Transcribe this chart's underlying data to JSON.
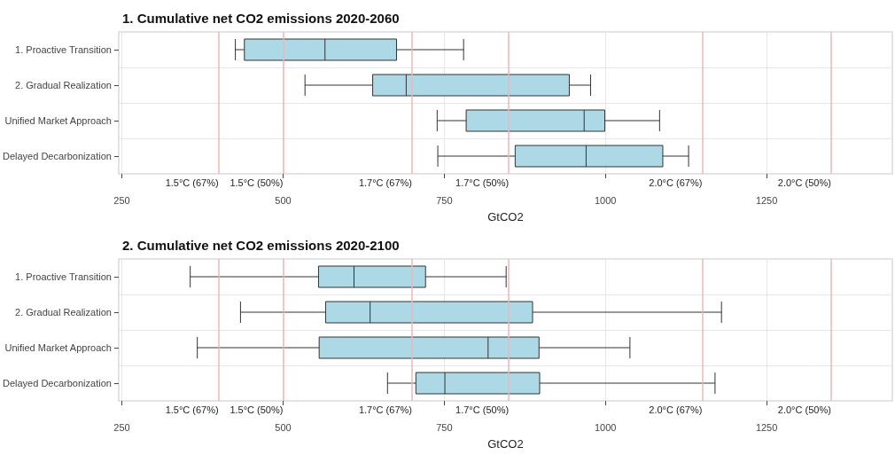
{
  "chart_data": [
    {
      "type": "box",
      "title": "1. Cumulative net CO2 emissions 2020-2060",
      "xlabel": "GtCO2",
      "orientation": "horizontal",
      "categories": [
        "1. Proactive Transition",
        "2. Gradual Realization",
        "Unified Market Approach",
        "Delayed Decarbonization"
      ],
      "color": "#add8e6",
      "boxes": [
        {
          "low": 426,
          "q1": 440,
          "median": 565,
          "q3": 676,
          "high": 780
        },
        {
          "low": 534,
          "q1": 639,
          "median": 691,
          "q3": 944,
          "high": 977
        },
        {
          "low": 739,
          "q1": 784,
          "median": 967,
          "q3": 999,
          "high": 1084
        },
        {
          "low": 740,
          "q1": 860,
          "median": 970,
          "q3": 1089,
          "high": 1129
        }
      ],
      "xlim": [
        245,
        1445
      ],
      "xticks": [
        250,
        500,
        750,
        1000,
        1250
      ],
      "grid": true,
      "ref_lines": [
        {
          "axis": "x",
          "value": 400,
          "label": "1.5°C (67%)",
          "color": "#e8b8bc"
        },
        {
          "axis": "x",
          "value": 500,
          "label": "1.5°C (50%)",
          "color": "#e8b8bc"
        },
        {
          "axis": "x",
          "value": 700,
          "label": "1.7°C (67%)",
          "color": "#e8b8bc"
        },
        {
          "axis": "x",
          "value": 850,
          "label": "1.7°C (50%)",
          "color": "#e8b8bc"
        },
        {
          "axis": "x",
          "value": 1150,
          "label": "2.0°C (67%)",
          "color": "#e8b8bc"
        },
        {
          "axis": "x",
          "value": 1350,
          "label": "2.0°C (50%)",
          "color": "#e8b8bc"
        }
      ]
    },
    {
      "type": "box",
      "title": "2. Cumulative net CO2 emissions 2020-2100",
      "xlabel": "GtCO2",
      "orientation": "horizontal",
      "categories": [
        "1. Proactive Transition",
        "2. Gradual Realization",
        "Unified Market Approach",
        "Delayed Decarbonization"
      ],
      "color": "#add8e6",
      "boxes": [
        {
          "low": 356,
          "q1": 555,
          "median": 610,
          "q3": 721,
          "high": 846
        },
        {
          "low": 434,
          "q1": 566,
          "median": 635,
          "q3": 887,
          "high": 1180
        },
        {
          "low": 367,
          "q1": 556,
          "median": 818,
          "q3": 897,
          "high": 1038
        },
        {
          "low": 662,
          "q1": 706,
          "median": 751,
          "q3": 898,
          "high": 1170
        }
      ],
      "xlim": [
        245,
        1445
      ],
      "xticks": [
        250,
        500,
        750,
        1000,
        1250
      ],
      "grid": true,
      "ref_lines": [
        {
          "axis": "x",
          "value": 400,
          "label": "1.5°C (67%)",
          "color": "#e8b8bc"
        },
        {
          "axis": "x",
          "value": 500,
          "label": "1.5°C (50%)",
          "color": "#e8b8bc"
        },
        {
          "axis": "x",
          "value": 700,
          "label": "1.7°C (67%)",
          "color": "#e8b8bc"
        },
        {
          "axis": "x",
          "value": 850,
          "label": "1.7°C (50%)",
          "color": "#e8b8bc"
        },
        {
          "axis": "x",
          "value": 1150,
          "label": "2.0°C (67%)",
          "color": "#e8b8bc"
        },
        {
          "axis": "x",
          "value": 1350,
          "label": "2.0°C (50%)",
          "color": "#e8b8bc"
        }
      ]
    }
  ]
}
